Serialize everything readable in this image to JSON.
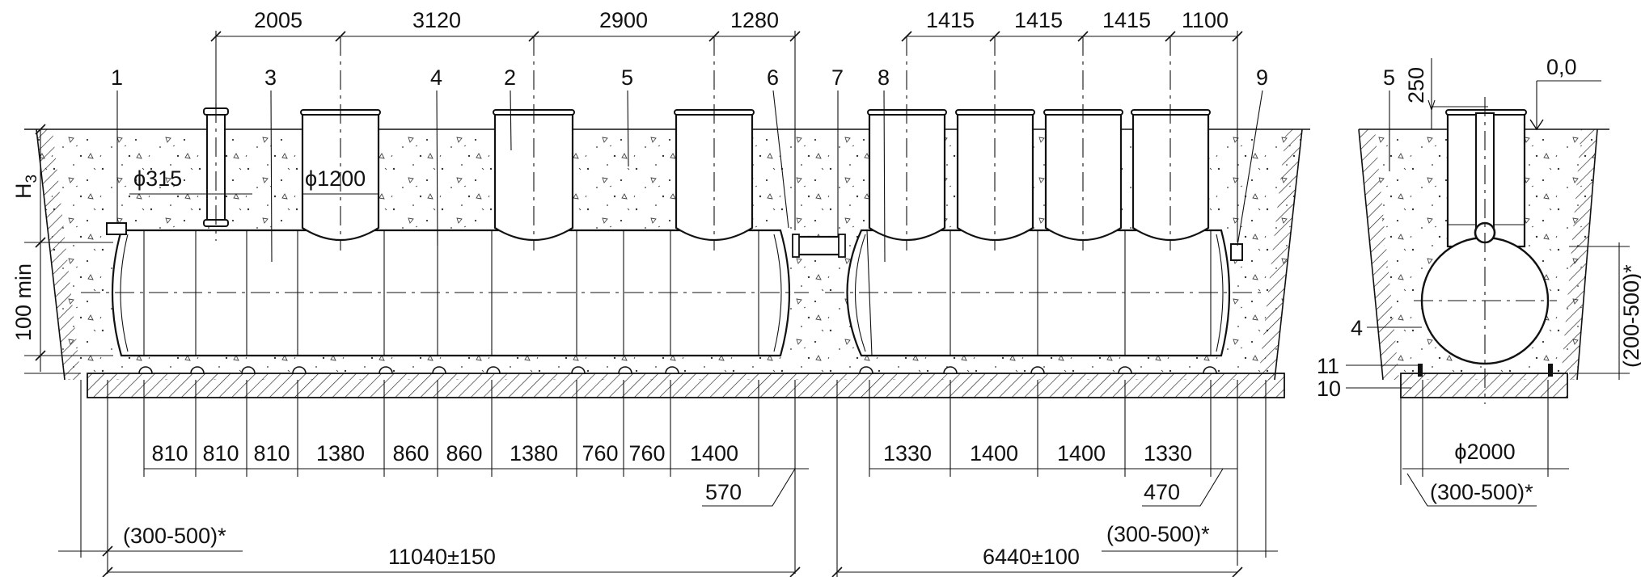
{
  "top_dims": {
    "a": [
      "2005",
      "3120",
      "2900",
      "1280"
    ],
    "b": [
      "1415",
      "1415",
      "1415",
      "1100"
    ]
  },
  "bottom_dims": {
    "a": [
      "810",
      "810",
      "810",
      "1380",
      "860",
      "860",
      "1380",
      "760",
      "760",
      "1400"
    ],
    "b": [
      "1330",
      "1400",
      "1400",
      "1330"
    ],
    "end_a": "570",
    "end_b": "470",
    "bed_a": "(300-500)*",
    "bed_b": "(300-500)*",
    "bed_c": "(300-500)*",
    "total_a": "11040±150",
    "total_b": "6440±100",
    "diameter_2000": "ϕ2000"
  },
  "diameters": {
    "pipe": "ϕ315",
    "neck": "ϕ1200"
  },
  "side_dims": {
    "h3": "H",
    "h3_sub": "3",
    "min": "100 min",
    "v250": "250",
    "zero": "0,0",
    "range": "(200-500)*"
  },
  "callouts": [
    "1",
    "2",
    "3",
    "4",
    "5",
    "6",
    "7",
    "8",
    "9",
    "4",
    "5",
    "10",
    "11"
  ]
}
